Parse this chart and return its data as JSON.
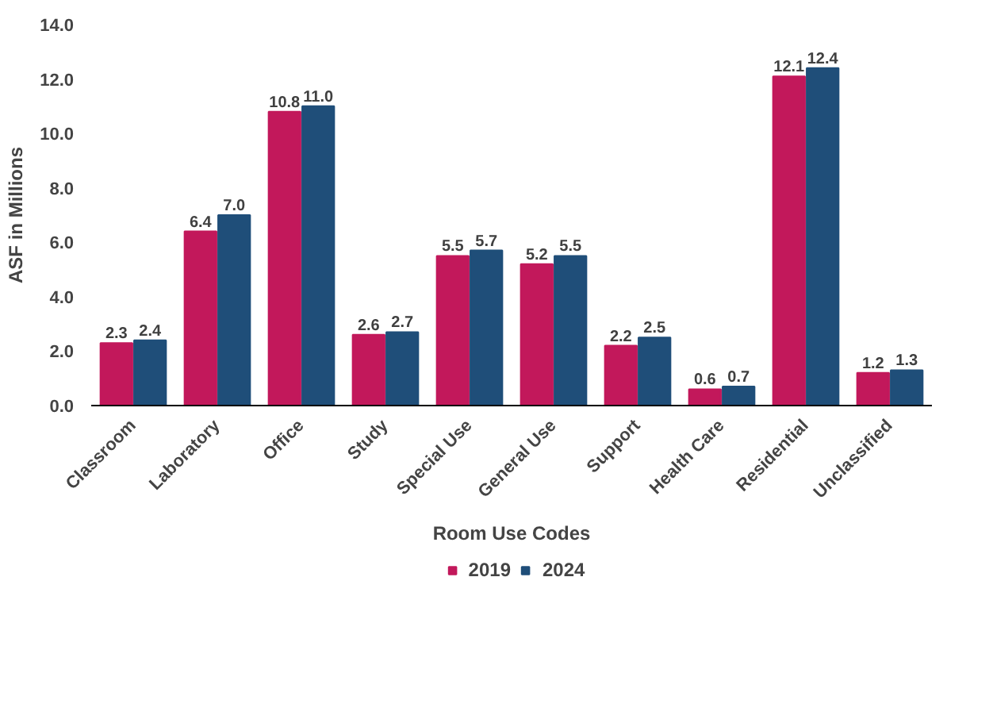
{
  "chart_data": {
    "type": "bar",
    "xlabel": "Room Use Codes",
    "ylabel": "ASF in Millions",
    "categories": [
      "Classroom",
      "Laboratory",
      "Office",
      "Study",
      "Special Use",
      "General Use",
      "Support",
      "Health Care",
      "Residential",
      "Unclassified"
    ],
    "series": [
      {
        "name": "2019",
        "color": "#c2185b",
        "values": [
          2.3,
          6.4,
          10.8,
          2.6,
          5.5,
          5.2,
          2.2,
          0.6,
          12.1,
          1.2
        ],
        "value_labels": [
          "2.3",
          "6.4",
          "10.8",
          "2.6",
          "5.5",
          "5.2",
          "2.2",
          "0.6",
          "12.1",
          "1.2"
        ]
      },
      {
        "name": "2024",
        "color": "#1f4e79",
        "values": [
          2.4,
          7.0,
          11.0,
          2.7,
          5.7,
          5.5,
          2.5,
          0.7,
          12.4,
          1.3
        ],
        "value_labels": [
          "2.4",
          "7.0",
          "11.0",
          "2.7",
          "5.7",
          "5.5",
          "2.5",
          "0.7",
          "12.4",
          "1.3"
        ]
      }
    ],
    "ylim": [
      0,
      14
    ],
    "yticks": [
      {
        "value": 0,
        "label": "0.0"
      },
      {
        "value": 2,
        "label": "2.0"
      },
      {
        "value": 4,
        "label": "4.0"
      },
      {
        "value": 6,
        "label": "6.0"
      },
      {
        "value": 8,
        "label": "8.0"
      },
      {
        "value": 10,
        "label": "10.0"
      },
      {
        "value": 12,
        "label": "12.0"
      },
      {
        "value": 14,
        "label": "14.0"
      }
    ],
    "legend": "bottom",
    "grid": false
  }
}
